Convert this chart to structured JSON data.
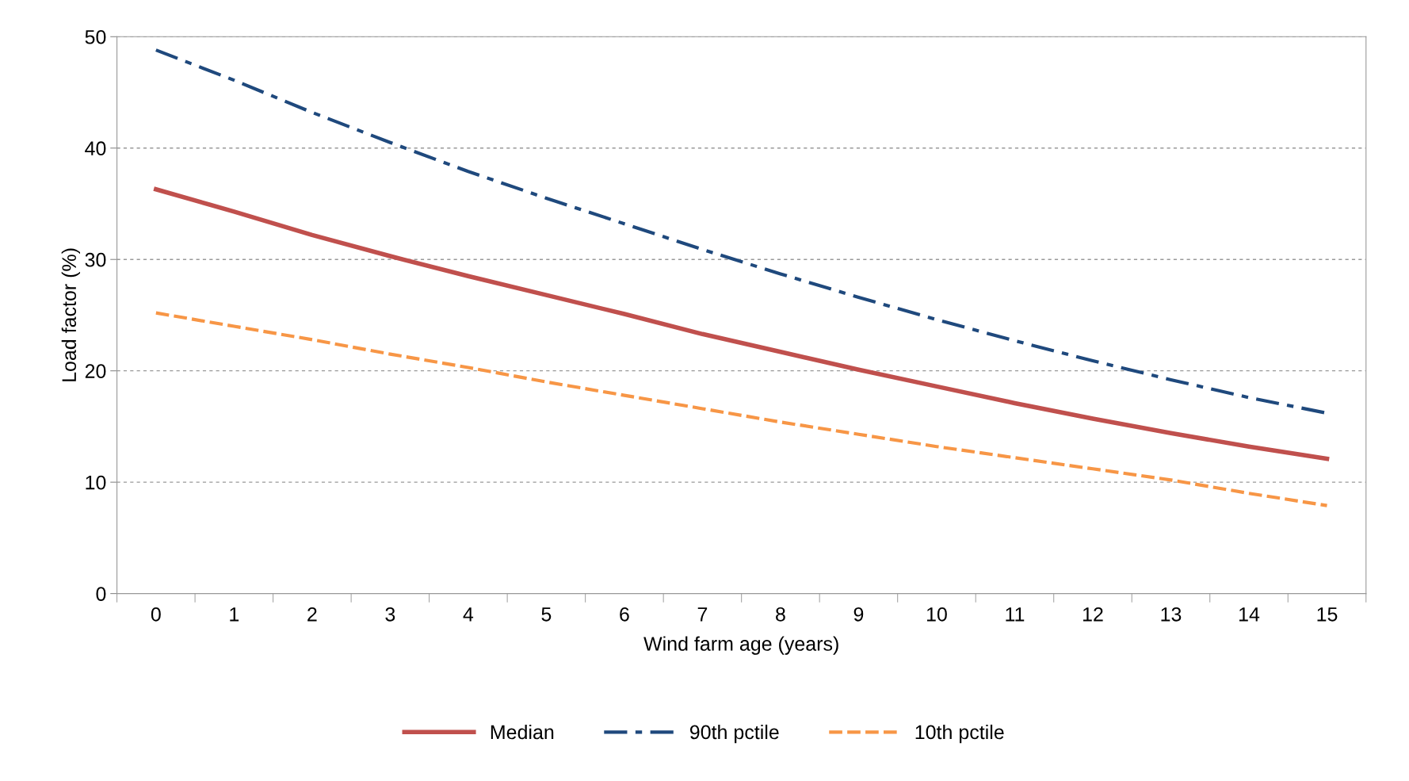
{
  "chart_data": {
    "type": "line",
    "xlabel": "Wind farm age (years)",
    "ylabel": "Load factor (%)",
    "categories": [
      "0",
      "1",
      "2",
      "3",
      "4",
      "5",
      "6",
      "7",
      "8",
      "9",
      "10",
      "11",
      "12",
      "13",
      "14",
      "15"
    ],
    "ylim": [
      0,
      50
    ],
    "yticks": [
      0,
      10,
      20,
      30,
      40,
      50
    ],
    "grid": "y",
    "legend": "bottom",
    "series": [
      {
        "name": "Median",
        "color": "#c0504d",
        "line_style": "solid",
        "values": [
          36.3,
          34.3,
          32.2,
          30.3,
          28.5,
          26.8,
          25.1,
          23.3,
          21.7,
          20.1,
          18.6,
          17.1,
          15.7,
          14.4,
          13.2,
          12.1
        ]
      },
      {
        "name": "90th pctile",
        "color": "#1f497d",
        "line_style": "dashdot",
        "values": [
          48.8,
          46.1,
          43.2,
          40.5,
          37.9,
          35.5,
          33.2,
          30.9,
          28.7,
          26.6,
          24.6,
          22.7,
          20.9,
          19.2,
          17.6,
          16.2
        ]
      },
      {
        "name": "10th pctile",
        "color": "#f79646",
        "line_style": "dashed",
        "values": [
          25.2,
          24.0,
          22.8,
          21.5,
          20.3,
          19.0,
          17.8,
          16.6,
          15.4,
          14.3,
          13.2,
          12.2,
          11.2,
          10.2,
          9.0,
          7.9
        ]
      }
    ]
  }
}
